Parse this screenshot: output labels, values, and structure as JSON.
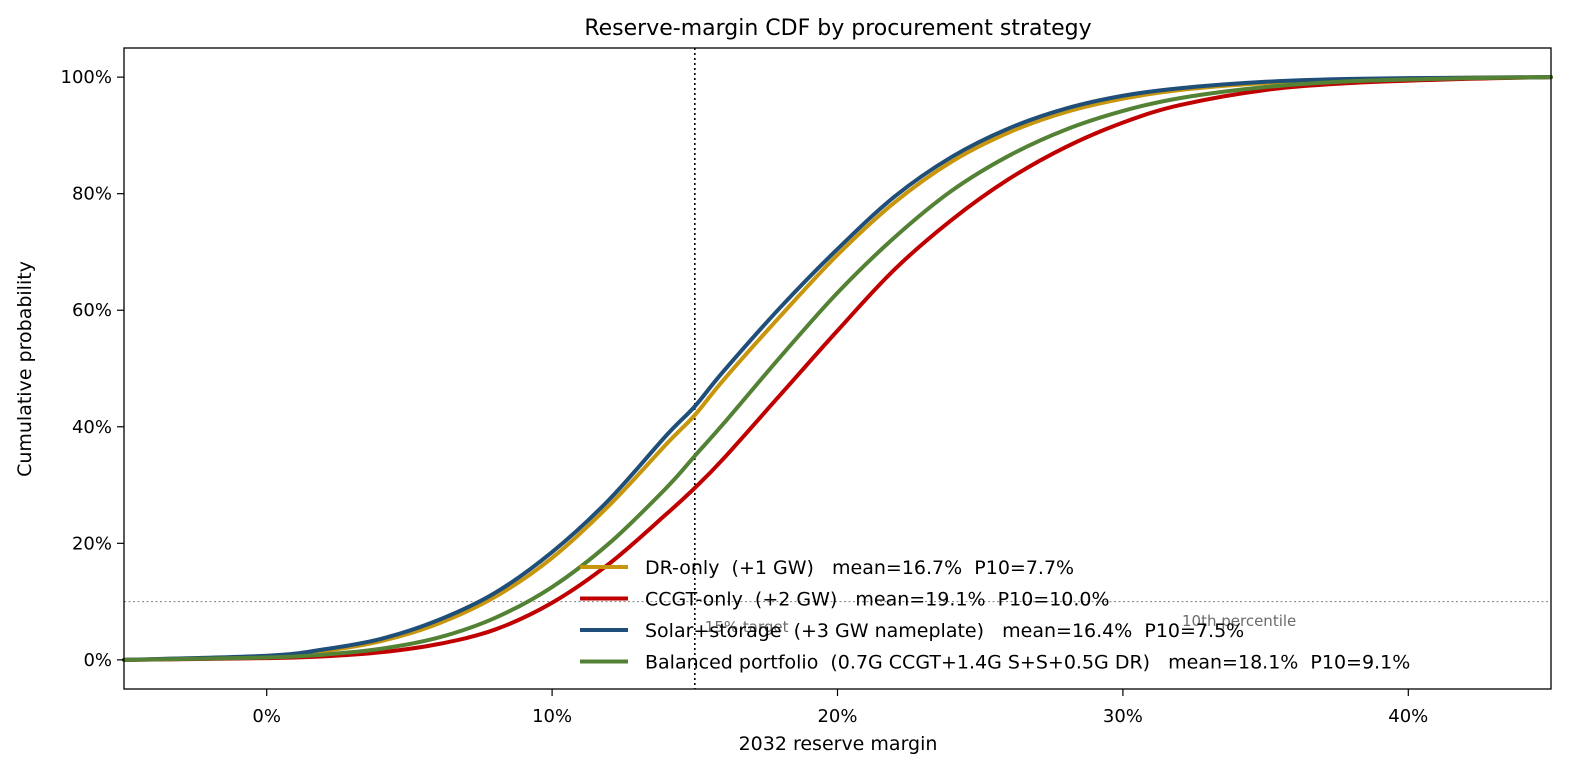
{
  "chart_data": {
    "type": "line",
    "title": "Reserve-margin CDF by procurement strategy",
    "xlabel": "2032 reserve margin",
    "ylabel": "Cumulative probability",
    "xlim": [
      -5,
      45
    ],
    "ylim": [
      -5,
      105
    ],
    "xticks": [
      0,
      10,
      20,
      30,
      40
    ],
    "xtick_labels": [
      "0%",
      "10%",
      "20%",
      "30%",
      "40%"
    ],
    "yticks": [
      0,
      20,
      40,
      60,
      80,
      100
    ],
    "ytick_labels": [
      "0%",
      "20%",
      "40%",
      "60%",
      "80%",
      "100%"
    ],
    "grid": false,
    "legend_position": "lower-right",
    "target_line": {
      "x": 15,
      "label": "15% target"
    },
    "percentile_line": {
      "y": 10,
      "label": "10th percentile"
    },
    "series": [
      {
        "name": "DR-only  (+1 GW)   mean=16.7%  P10=7.7%",
        "color": "#C8960C",
        "x": [
          -5,
          0,
          2,
          4,
          6,
          8,
          10,
          12,
          14,
          15,
          16,
          18,
          20,
          22,
          24,
          26,
          28,
          30,
          32,
          35,
          38,
          42,
          45
        ],
        "y": [
          0,
          0.6,
          1.5,
          3.2,
          6.2,
          10.8,
          17.5,
          26.5,
          37,
          42,
          48,
          59,
          69.5,
          78.5,
          85.5,
          90.5,
          94,
          96.3,
          97.8,
          99,
          99.6,
          99.9,
          100
        ]
      },
      {
        "name": "CCGT-only  (+2 GW)   mean=19.1%  P10=10.0%",
        "color": "#C00000",
        "x": [
          -5,
          0,
          2,
          4,
          6,
          8,
          10,
          12,
          14,
          15,
          16,
          18,
          20,
          22,
          24,
          26,
          28,
          30,
          32,
          35,
          38,
          42,
          45
        ],
        "y": [
          0,
          0.3,
          0.6,
          1.3,
          2.7,
          5.2,
          9.8,
          16.5,
          25,
          29.5,
          34.5,
          45.5,
          56.5,
          67,
          75.5,
          82.5,
          88,
          92.2,
          95.2,
          97.8,
          99,
          99.7,
          100
        ]
      },
      {
        "name": "Solar+storage  (+3 GW nameplate)   mean=16.4%  P10=7.5%",
        "color": "#1F4E79",
        "x": [
          -5,
          0,
          2,
          4,
          6,
          8,
          10,
          12,
          14,
          15,
          16,
          18,
          20,
          22,
          24,
          26,
          28,
          30,
          32,
          35,
          38,
          42,
          45
        ],
        "y": [
          0,
          0.7,
          1.8,
          3.6,
          6.8,
          11.5,
          18.5,
          27.5,
          38.5,
          43.5,
          49.5,
          60.5,
          70.5,
          79.5,
          86.3,
          91.2,
          94.6,
          96.8,
          98.1,
          99.2,
          99.7,
          99.9,
          100
        ]
      },
      {
        "name": "Balanced portfolio  (0.7G CCGT+1.4G S+S+0.5G DR)   mean=18.1%  P10=9.1%",
        "color": "#548235",
        "x": [
          -5,
          0,
          2,
          4,
          6,
          8,
          10,
          12,
          14,
          15,
          16,
          18,
          20,
          22,
          24,
          26,
          28,
          30,
          32,
          35,
          38,
          42,
          45
        ],
        "y": [
          0,
          0.4,
          0.9,
          1.9,
          3.8,
          7.2,
          12.5,
          20,
          29.5,
          35,
          40.5,
          52,
          63,
          72.5,
          80.5,
          86.5,
          91,
          94.2,
          96.4,
          98.3,
          99.3,
          99.8,
          100
        ]
      }
    ]
  }
}
